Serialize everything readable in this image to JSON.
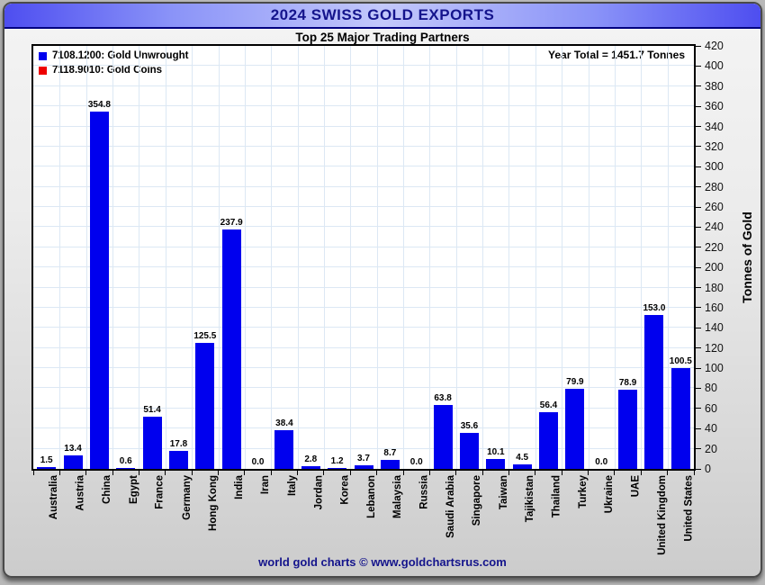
{
  "header": {
    "title": "2024 SWISS GOLD EXPORTS"
  },
  "subtitle": "Top 25 Major Trading Partners",
  "legend": {
    "items": [
      {
        "label": "7108.1200: Gold Unwrought",
        "color": "#0000EE"
      },
      {
        "label": "7118.9010: Gold Coins",
        "color": "#EE0000"
      }
    ]
  },
  "annotations": {
    "year_total": "Year Total = 1451.7 Tonnes"
  },
  "footer": {
    "credit": "world gold charts © www.goldchartsrus.com"
  },
  "colors": {
    "bar_blue": "#0000EE",
    "coins_red": "#EE0000",
    "title_navy": "#14148C",
    "gridline": "#DCE8F4",
    "plot_border": "#000000"
  },
  "chart_data": {
    "type": "bar",
    "title": "2024 SWISS GOLD EXPORTS",
    "subtitle": "Top 25 Major Trading Partners",
    "xlabel": "",
    "ylabel": "Tonnes of Gold",
    "ylim": [
      0,
      420
    ],
    "ytick_step": 20,
    "grid": true,
    "legend_position": "top-left",
    "yaxis_side": "right",
    "year_total_tonnes": 1451.7,
    "categories": [
      "Australia",
      "Austria",
      "China",
      "Egypt",
      "France",
      "Germany",
      "Hong Kong",
      "India",
      "Iran",
      "Italy",
      "Jordan",
      "Korea",
      "Lebanon",
      "Malaysia",
      "Russia",
      "Saudi Arabia",
      "Singapore",
      "Taiwan",
      "Tajikistan",
      "Thailand",
      "Turkey",
      "Ukraine",
      "UAE",
      "United Kingdom",
      "United States"
    ],
    "series": [
      {
        "name": "7108.1200: Gold Unwrought",
        "color": "#0000EE",
        "values": [
          1.5,
          13.4,
          354.8,
          0.6,
          51.4,
          17.8,
          125.5,
          237.9,
          0.0,
          38.4,
          2.8,
          1.2,
          3.7,
          8.7,
          0.0,
          63.8,
          35.6,
          10.1,
          4.5,
          56.4,
          79.9,
          0.0,
          78.9,
          153.0,
          100.5
        ]
      },
      {
        "name": "7118.9010: Gold Coins",
        "color": "#EE0000",
        "values": [],
        "visible_bars": false
      }
    ]
  }
}
